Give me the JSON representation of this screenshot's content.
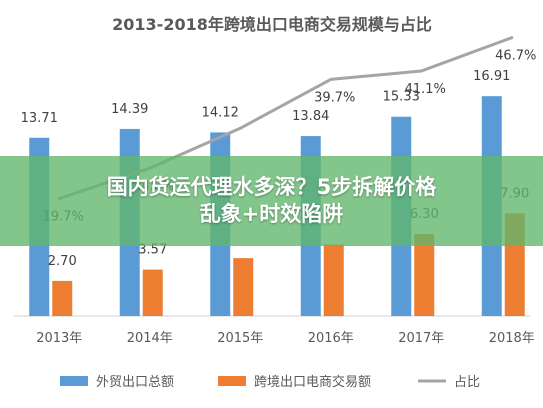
{
  "chart_data": {
    "type": "bar",
    "title": "2013-2018年跨境出口电商交易规模与占比",
    "categories": [
      "2013年",
      "2014年",
      "2015年",
      "2016年",
      "2017年",
      "2018年"
    ],
    "series": [
      {
        "name": "外贸出口总额",
        "type": "bar",
        "color": "#5b9bd5",
        "values": [
          13.71,
          14.39,
          14.12,
          13.84,
          15.33,
          16.91
        ],
        "labels": [
          "13.71",
          "14.39",
          "14.12",
          "13.84",
          "15.33",
          "16.91"
        ]
      },
      {
        "name": "跨境出口电商交易额",
        "type": "bar",
        "color": "#ed7d31",
        "values": [
          2.7,
          3.57,
          4.45,
          5.5,
          6.3,
          7.9
        ],
        "labels": [
          "2.70",
          "3.57",
          "",
          "",
          "6.30",
          "7.90"
        ]
      },
      {
        "name": "占比",
        "type": "line",
        "color": "#a5a5a5",
        "values": [
          19.7,
          24.8,
          31.5,
          39.7,
          41.1,
          46.7
        ],
        "labels": [
          "19.7%",
          "24.8%",
          "",
          "39.7%",
          "41.1%",
          "46.7%"
        ]
      }
    ],
    "ylim": [
      0,
      18
    ],
    "y2lim": [
      0,
      50
    ],
    "grid": true,
    "legend_position": "bottom"
  },
  "overlay": {
    "line1": "国内货运代理水多深？5步拆解价格",
    "line2": "乱象+时效陷阱"
  }
}
